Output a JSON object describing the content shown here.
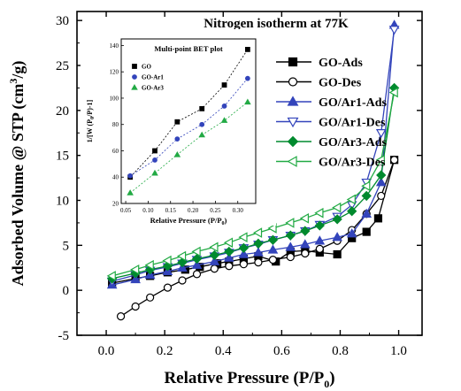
{
  "chart_data": [
    {
      "type": "line",
      "title": "Nitrogen isotherm at 77K",
      "xlabel": "Relative Pressure (P/P0)",
      "xlabel_parts": {
        "main": "Relative Pressure (P/P",
        "sub": "0",
        "close": ")"
      },
      "ylabel": "Adsorbed Volume @ STP (cm3/g)",
      "ylabel_parts": {
        "main": "Adsorbed Volume @ STP (cm",
        "sup": "3",
        "close": "/g)"
      },
      "xlim": [
        -0.1,
        1.08
      ],
      "ylim": [
        -5,
        31
      ],
      "xticks": [
        "0.0",
        "0.2",
        "0.4",
        "0.6",
        "0.8",
        "1.0"
      ],
      "yticks": [
        "-5",
        "0",
        "5",
        "10",
        "15",
        "20",
        "25",
        "30"
      ],
      "legend_position": "right",
      "series": [
        {
          "name": "GO-Ads",
          "color": "#000000",
          "marker": "square",
          "filled": true,
          "x": [
            0.02,
            0.1,
            0.15,
            0.21,
            0.27,
            0.32,
            0.38,
            0.42,
            0.47,
            0.52,
            0.58,
            0.63,
            0.68,
            0.73,
            0.79,
            0.84,
            0.89,
            0.93,
            0.985
          ],
          "y": [
            0.8,
            1.3,
            1.6,
            2.0,
            2.3,
            2.6,
            3.0,
            3.2,
            3.5,
            3.8,
            3.2,
            4.3,
            4.4,
            4.2,
            4.0,
            5.8,
            6.5,
            8.0,
            14.5
          ]
        },
        {
          "name": "GO-Des",
          "color": "#000000",
          "marker": "circle",
          "filled": false,
          "x": [
            0.05,
            0.1,
            0.15,
            0.21,
            0.26,
            0.31,
            0.37,
            0.42,
            0.47,
            0.52,
            0.57,
            0.63,
            0.68,
            0.73,
            0.79,
            0.84,
            0.89,
            0.94,
            0.985
          ],
          "y": [
            -2.9,
            -1.8,
            -0.8,
            0.3,
            1.1,
            1.8,
            2.4,
            2.7,
            2.9,
            3.1,
            3.4,
            3.7,
            4.1,
            4.6,
            5.5,
            6.7,
            8.5,
            10.5,
            14.5
          ]
        },
        {
          "name": "GO/Ar1-Ads",
          "color": "#3344bb",
          "marker": "triangle-up",
          "filled": true,
          "x": [
            0.02,
            0.1,
            0.15,
            0.21,
            0.26,
            0.31,
            0.37,
            0.42,
            0.47,
            0.52,
            0.57,
            0.63,
            0.68,
            0.73,
            0.79,
            0.84,
            0.89,
            0.94,
            0.985
          ],
          "y": [
            0.6,
            1.2,
            1.7,
            2.1,
            2.5,
            2.8,
            3.2,
            3.6,
            4.0,
            4.2,
            4.5,
            4.8,
            5.1,
            5.5,
            5.9,
            6.3,
            8.5,
            12.0,
            29.5
          ]
        },
        {
          "name": "GO/Ar1-Des",
          "color": "#3344bb",
          "marker": "triangle-down",
          "filled": false,
          "x": [
            0.02,
            0.1,
            0.15,
            0.21,
            0.26,
            0.31,
            0.37,
            0.42,
            0.47,
            0.52,
            0.57,
            0.63,
            0.68,
            0.73,
            0.79,
            0.84,
            0.89,
            0.94,
            0.985
          ],
          "y": [
            1.0,
            1.7,
            2.2,
            2.6,
            3.0,
            3.4,
            3.8,
            4.2,
            4.7,
            5.1,
            5.6,
            6.1,
            6.6,
            7.3,
            8.2,
            9.5,
            12.0,
            17.5,
            29.0
          ]
        },
        {
          "name": "GO/Ar3-Ads",
          "color": "#008a2e",
          "marker": "diamond",
          "filled": true,
          "x": [
            0.02,
            0.1,
            0.15,
            0.21,
            0.26,
            0.31,
            0.37,
            0.42,
            0.47,
            0.52,
            0.57,
            0.63,
            0.68,
            0.73,
            0.79,
            0.84,
            0.89,
            0.94,
            0.985
          ],
          "y": [
            1.3,
            1.9,
            2.3,
            2.7,
            3.1,
            3.5,
            3.9,
            4.3,
            4.7,
            5.2,
            5.6,
            6.1,
            6.6,
            7.2,
            7.9,
            8.8,
            10.5,
            12.8,
            22.5
          ]
        },
        {
          "name": "GO/Ar3-Des",
          "color": "#22aa44",
          "marker": "triangle-left",
          "filled": false,
          "x": [
            0.02,
            0.1,
            0.15,
            0.21,
            0.26,
            0.31,
            0.37,
            0.42,
            0.47,
            0.52,
            0.57,
            0.63,
            0.68,
            0.73,
            0.79,
            0.84,
            0.89,
            0.94,
            0.985
          ],
          "y": [
            1.6,
            2.3,
            2.8,
            3.3,
            3.8,
            4.3,
            4.8,
            5.3,
            5.9,
            6.4,
            6.9,
            7.5,
            8.0,
            8.6,
            9.2,
            10.1,
            11.6,
            14.5,
            22.0
          ]
        }
      ]
    },
    {
      "type": "scatter",
      "title": "Multi-point BET plot",
      "xlabel": "Relative Pressure (P/P0)",
      "xlabel_parts": {
        "main": "Relative Pressure (P/P",
        "sub": "0",
        "close": ")"
      },
      "ylabel": "1/[W (P0/P)-1]",
      "ylabel_parts": {
        "a": "1/[W (P",
        "sub": "0",
        "b": "/P)-1]"
      },
      "xlim": [
        0.04,
        0.34
      ],
      "ylim": [
        20,
        145
      ],
      "xticks": [
        "0.05",
        "0.10",
        "0.15",
        "0.20",
        "0.25",
        "0.30"
      ],
      "yticks": [
        "20",
        "40",
        "60",
        "80",
        "100",
        "120",
        "140"
      ],
      "legend_position": "top-left",
      "series": [
        {
          "name": "GO",
          "color": "#000000",
          "marker": "square",
          "x": [
            0.06,
            0.115,
            0.165,
            0.22,
            0.27,
            0.322
          ],
          "y": [
            40,
            60,
            82,
            92,
            110,
            137
          ]
        },
        {
          "name": "GO-Ar1",
          "color": "#3344bb",
          "marker": "circle",
          "x": [
            0.06,
            0.115,
            0.165,
            0.22,
            0.27,
            0.322
          ],
          "y": [
            41,
            53,
            69,
            80,
            94,
            115
          ]
        },
        {
          "name": "GO-Ar3",
          "color": "#22aa44",
          "marker": "triangle-up",
          "x": [
            0.06,
            0.115,
            0.165,
            0.22,
            0.27,
            0.322
          ],
          "y": [
            28,
            43,
            57,
            72,
            83,
            97
          ]
        }
      ]
    }
  ]
}
